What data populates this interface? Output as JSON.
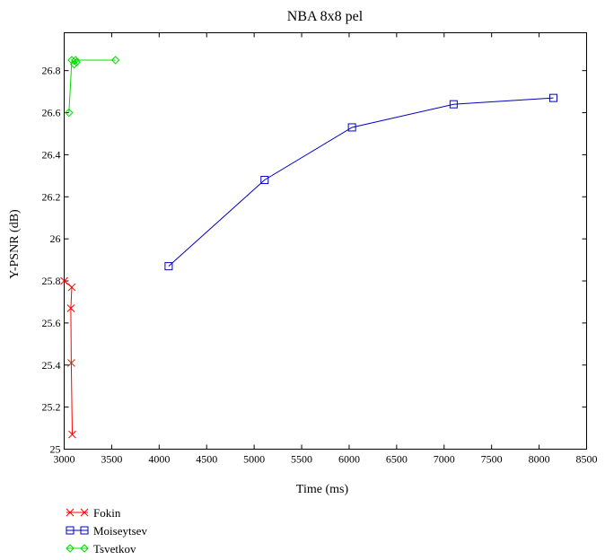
{
  "chart_data": {
    "type": "line",
    "title": "NBA 8x8 pel",
    "xlabel": "Time (ms)",
    "ylabel": "Y-PSNR (dB)",
    "xlim": [
      3000,
      8500
    ],
    "ylim": [
      25,
      26.98
    ],
    "x_ticks": [
      3000,
      3500,
      4000,
      4500,
      5000,
      5500,
      6000,
      6500,
      7000,
      7500,
      8000,
      8500
    ],
    "y_ticks": [
      25,
      25.2,
      25.4,
      25.6,
      25.8,
      26,
      26.2,
      26.4,
      26.6,
      26.8
    ],
    "x_tick_labels": [
      "3000",
      "3500",
      "4000",
      "4500",
      "5000",
      "5500",
      "6000",
      "6500",
      "7000",
      "7500",
      "8000",
      "8500"
    ],
    "y_tick_labels": [
      "25",
      "25.2",
      "25.4",
      "25.6",
      "25.8",
      "26",
      "26.2",
      "26.4",
      "26.6",
      "26.8"
    ],
    "grid": false,
    "legend_position": "below-left",
    "series": [
      {
        "name": "Fokin",
        "color": "#ff0000",
        "marker": "x",
        "x": [
          3000,
          3080,
          3070,
          3075,
          3085
        ],
        "y": [
          25.8,
          25.77,
          25.67,
          25.41,
          25.07
        ]
      },
      {
        "name": "Moiseytsev",
        "color": "#0000c0",
        "marker": "square",
        "x": [
          4100,
          5110,
          6030,
          7100,
          8150
        ],
        "y": [
          25.87,
          26.28,
          26.53,
          26.64,
          26.67
        ]
      },
      {
        "name": "Tsvetkov",
        "color": "#00dd00",
        "marker": "diamond",
        "x": [
          3050,
          3080,
          3105,
          3130,
          3120,
          3540
        ],
        "y": [
          26.6,
          26.85,
          26.83,
          26.84,
          26.85,
          26.85
        ]
      }
    ]
  }
}
